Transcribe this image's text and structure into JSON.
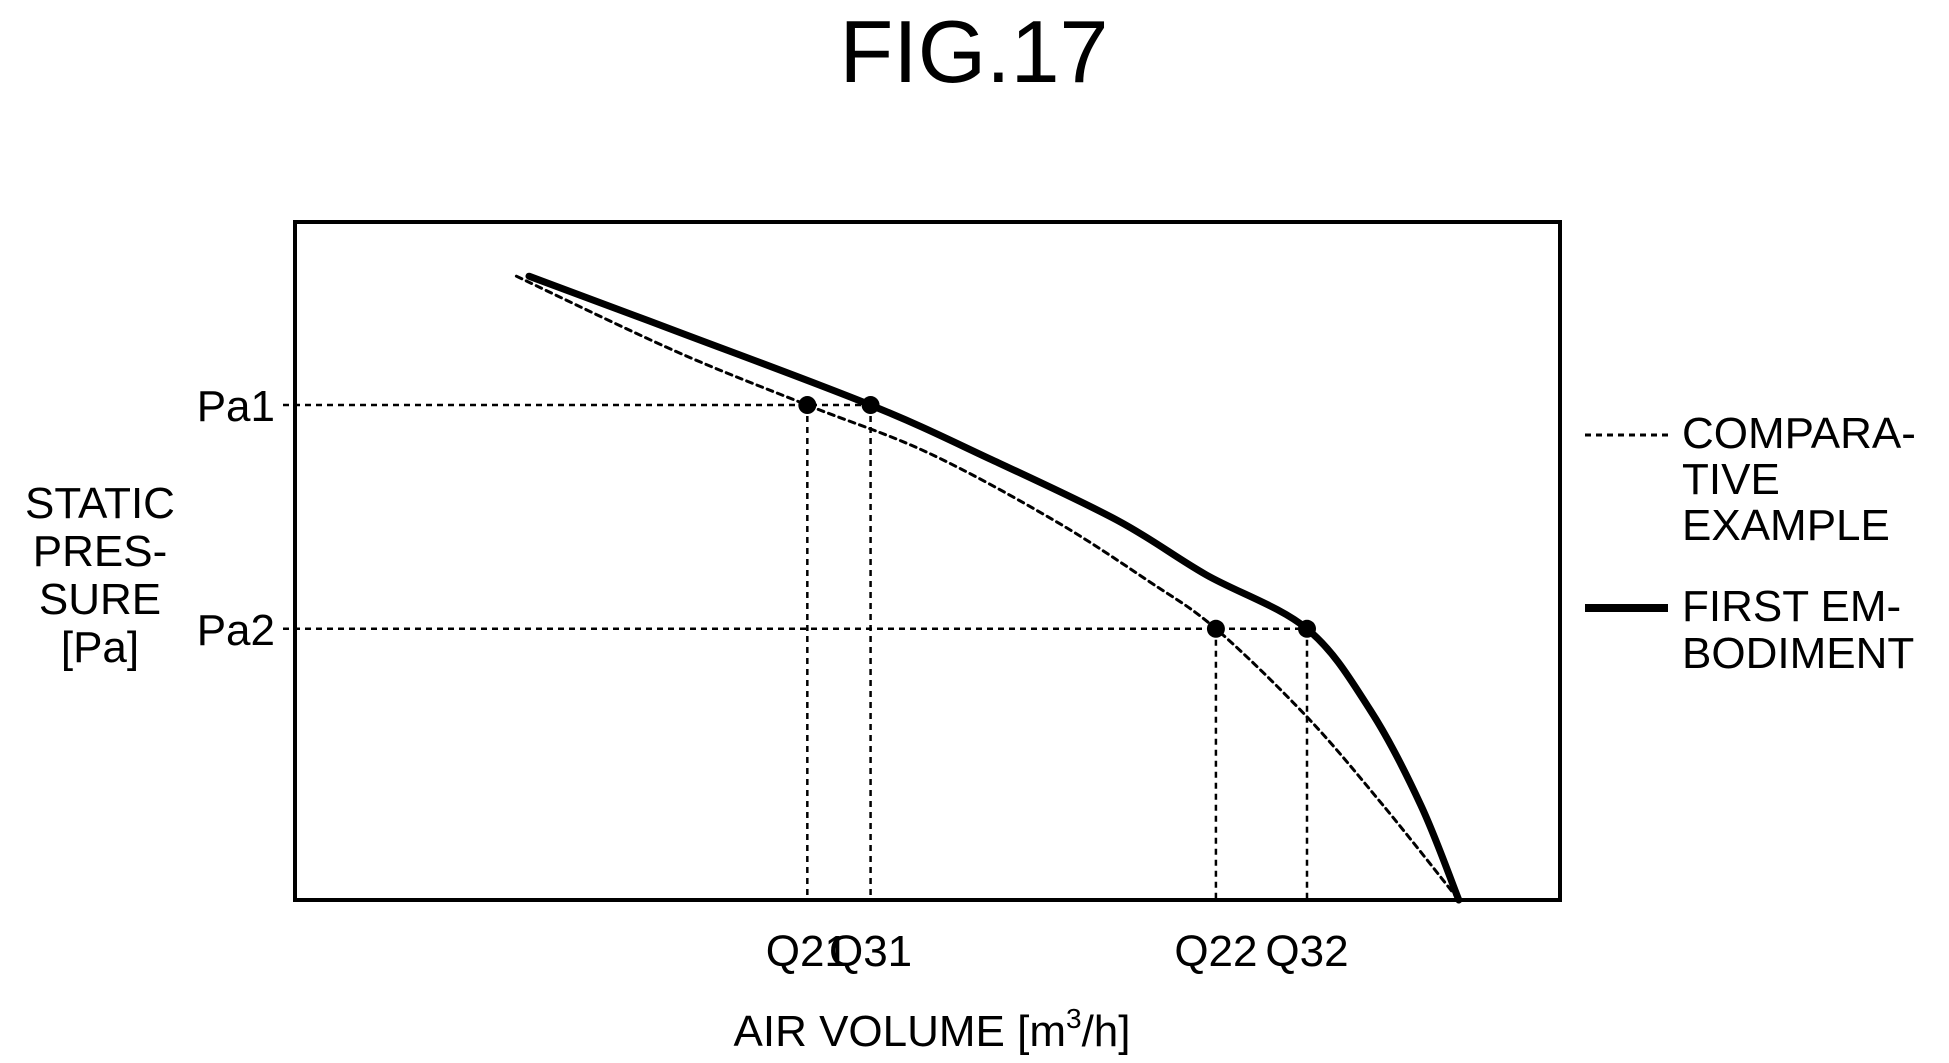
{
  "figure": {
    "title": "FIG.17"
  },
  "chart_data": {
    "type": "line",
    "title": "FIG.17",
    "xlabel": "AIR VOLUME [m",
    "xlabel_superscript": "3",
    "xlabel_suffix": "/h]",
    "ylabel_lines": [
      "STATIC",
      "PRES-",
      "SURE",
      "[Pa]"
    ],
    "y_ticks": [
      {
        "label": "Pa1",
        "value": 0.73
      },
      {
        "label": "Pa2",
        "value": 0.4
      }
    ],
    "x_ticks": [
      {
        "label": "Q21",
        "value": 0.405
      },
      {
        "label": "Q31",
        "value": 0.455
      },
      {
        "label": "Q22",
        "value": 0.728
      },
      {
        "label": "Q32",
        "value": 0.8
      }
    ],
    "xlim": [
      0,
      1
    ],
    "ylim": [
      0,
      1
    ],
    "grid": false,
    "legend_position": "right",
    "series": [
      {
        "name": "COMPARATIVE EXAMPLE",
        "legend_lines": [
          "COMPARA-",
          "TIVE",
          "EXAMPLE"
        ],
        "style": "dashed",
        "points": [
          [
            0.175,
            0.92
          ],
          [
            0.3,
            0.81
          ],
          [
            0.405,
            0.73
          ],
          [
            0.5,
            0.66
          ],
          [
            0.6,
            0.56
          ],
          [
            0.675,
            0.47
          ],
          [
            0.728,
            0.4
          ],
          [
            0.8,
            0.27
          ],
          [
            0.86,
            0.14
          ],
          [
            0.92,
            0.0
          ]
        ]
      },
      {
        "name": "FIRST EMBODIMENT",
        "legend_lines": [
          "FIRST EM-",
          "BODIMENT"
        ],
        "style": "solid",
        "points": [
          [
            0.185,
            0.92
          ],
          [
            0.3,
            0.84
          ],
          [
            0.455,
            0.73
          ],
          [
            0.55,
            0.65
          ],
          [
            0.65,
            0.56
          ],
          [
            0.72,
            0.48
          ],
          [
            0.8,
            0.4
          ],
          [
            0.85,
            0.28
          ],
          [
            0.89,
            0.14
          ],
          [
            0.92,
            0.0
          ]
        ]
      }
    ],
    "markers": [
      {
        "label": "Q21",
        "series": "COMPARATIVE EXAMPLE",
        "x": 0.405,
        "y": 0.73
      },
      {
        "label": "Q31",
        "series": "FIRST EMBODIMENT",
        "x": 0.455,
        "y": 0.73
      },
      {
        "label": "Q22",
        "series": "COMPARATIVE EXAMPLE",
        "x": 0.728,
        "y": 0.4
      },
      {
        "label": "Q32",
        "series": "FIRST EMBODIMENT",
        "x": 0.8,
        "y": 0.4
      }
    ]
  }
}
